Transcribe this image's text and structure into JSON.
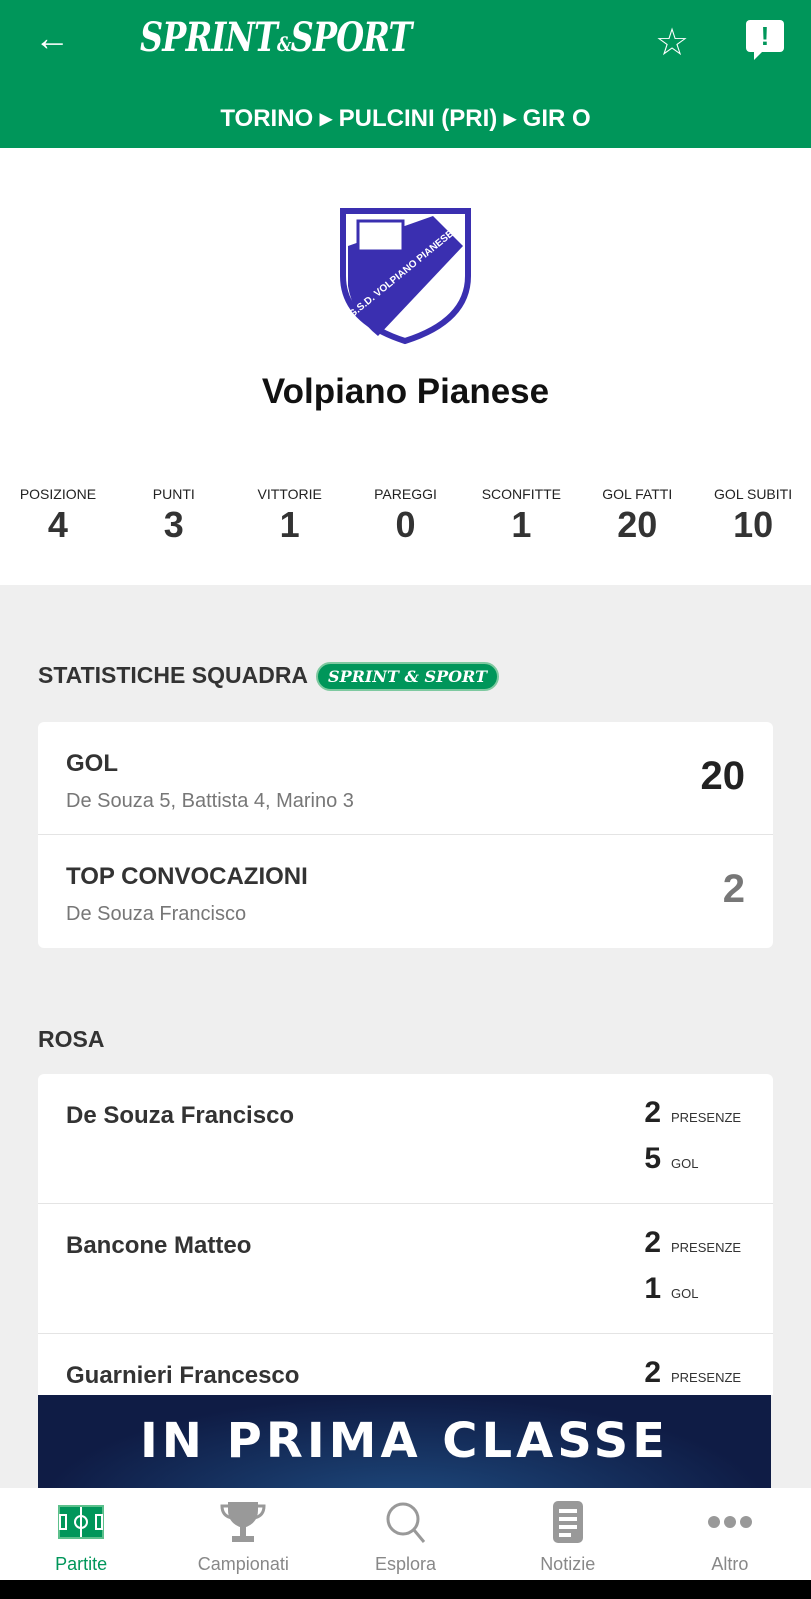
{
  "header": {
    "back_icon": "arrow-left-icon",
    "logo": "SPRINT & SPORT",
    "breadcrumb": "TORINO ▸ PULCINI (PRI) ▸ GIR O",
    "favorite_icon": "star-outline-icon",
    "report_icon": "report-feedback-icon"
  },
  "colors": {
    "brand": "#00965a",
    "crest_blue": "#3a2fb0"
  },
  "team": {
    "name": "Volpiano Pianese",
    "crest_text": "G.S.D. VOLPIANO PIANESE"
  },
  "stats": [
    {
      "label": "POSIZIONE",
      "value": "4"
    },
    {
      "label": "PUNTI",
      "value": "3"
    },
    {
      "label": "VITTORIE",
      "value": "1"
    },
    {
      "label": "PAREGGI",
      "value": "0"
    },
    {
      "label": "SCONFITTE",
      "value": "1"
    },
    {
      "label": "GOL FATTI",
      "value": "20"
    },
    {
      "label": "GOL SUBITI",
      "value": "10"
    }
  ],
  "team_stats": {
    "title": "STATISTICHE SQUADRA",
    "badge": "SPRINT & SPORT",
    "rows": [
      {
        "title": "GOL",
        "subtitle": "De Souza 5, Battista 4, Marino 3",
        "value": "20"
      },
      {
        "title": "TOP CONVOCAZIONI",
        "subtitle": "De Souza Francisco",
        "value": "2"
      }
    ]
  },
  "roster": {
    "title": "ROSA",
    "players": [
      {
        "name": "De Souza Francisco",
        "presenze": "2",
        "gol": "5"
      },
      {
        "name": "Bancone Matteo",
        "presenze": "2",
        "gol": "1"
      },
      {
        "name": "Guarnieri Francesco",
        "presenze": "2"
      }
    ],
    "presenze_label": "PRESENZE",
    "gol_label": "GOL"
  },
  "ad": {
    "text": "IN PRIMA CLASSE"
  },
  "nav": [
    {
      "label": "Partite",
      "icon": "football-field-icon",
      "active": true
    },
    {
      "label": "Campionati",
      "icon": "trophy-icon"
    },
    {
      "label": "Esplora",
      "icon": "search-icon"
    },
    {
      "label": "Notizie",
      "icon": "news-icon"
    },
    {
      "label": "Altro",
      "icon": "more-dots-icon"
    }
  ]
}
